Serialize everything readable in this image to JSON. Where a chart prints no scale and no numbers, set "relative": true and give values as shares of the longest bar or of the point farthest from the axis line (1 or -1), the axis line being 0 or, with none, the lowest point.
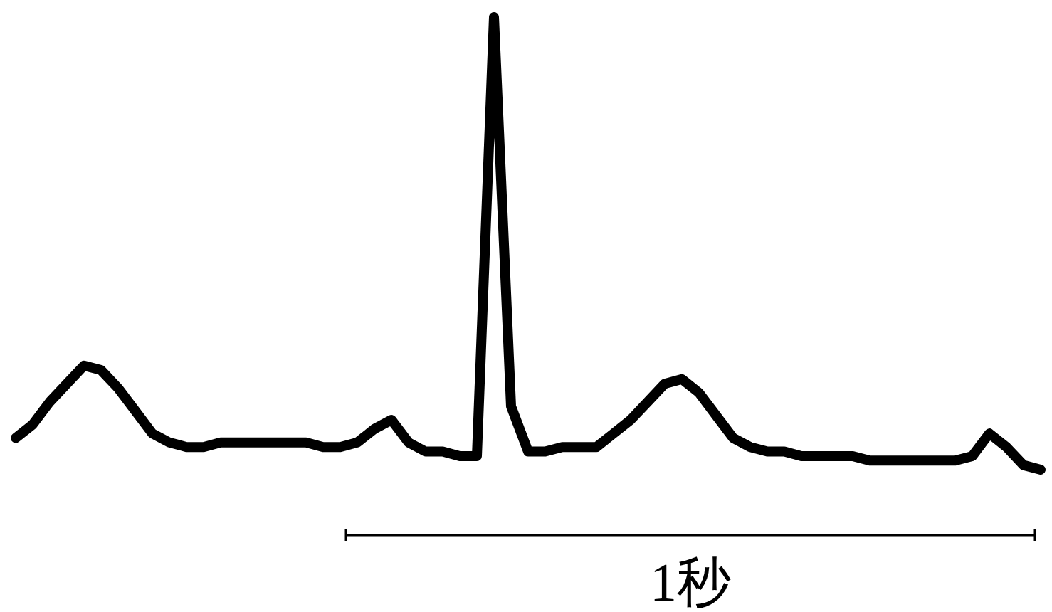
{
  "chart_data": {
    "type": "line",
    "relative": true,
    "color": "#000000",
    "categories": [
      null,
      null,
      null,
      null,
      null,
      null,
      null,
      null,
      null,
      null,
      null,
      null,
      null,
      null,
      null,
      null,
      null,
      null,
      null,
      null,
      null,
      null,
      null,
      null,
      null,
      null,
      null,
      null,
      null,
      null,
      null,
      null,
      null,
      null,
      null,
      null,
      null,
      null,
      null,
      null,
      null,
      null,
      null,
      null,
      null,
      null,
      null,
      null,
      null,
      null,
      null,
      null,
      null,
      null,
      null,
      null,
      null,
      null,
      null,
      null,
      null
    ],
    "values": [
      0.07,
      0.1,
      0.15,
      0.19,
      0.23,
      0.22,
      0.18,
      0.13,
      0.08,
      0.06,
      0.05,
      0.05,
      0.06,
      0.06,
      0.06,
      0.06,
      0.06,
      0.06,
      0.05,
      0.05,
      0.06,
      0.09,
      0.11,
      0.06,
      0.04,
      0.04,
      0.03,
      0.03,
      1,
      0.14,
      0.04,
      0.04,
      0.05,
      0.05,
      0.05,
      0.08,
      0.11,
      0.15,
      0.19,
      0.2,
      0.17,
      0.12,
      0.07,
      0.05,
      0.04,
      0.04,
      0.03,
      0.03,
      0.03,
      0.03,
      0.02,
      0.02,
      0.02,
      0.02,
      0.02,
      0.02,
      0.03,
      0.08,
      0.05,
      0.01,
      0
    ],
    "annotations": [
      "1秒"
    ]
  }
}
